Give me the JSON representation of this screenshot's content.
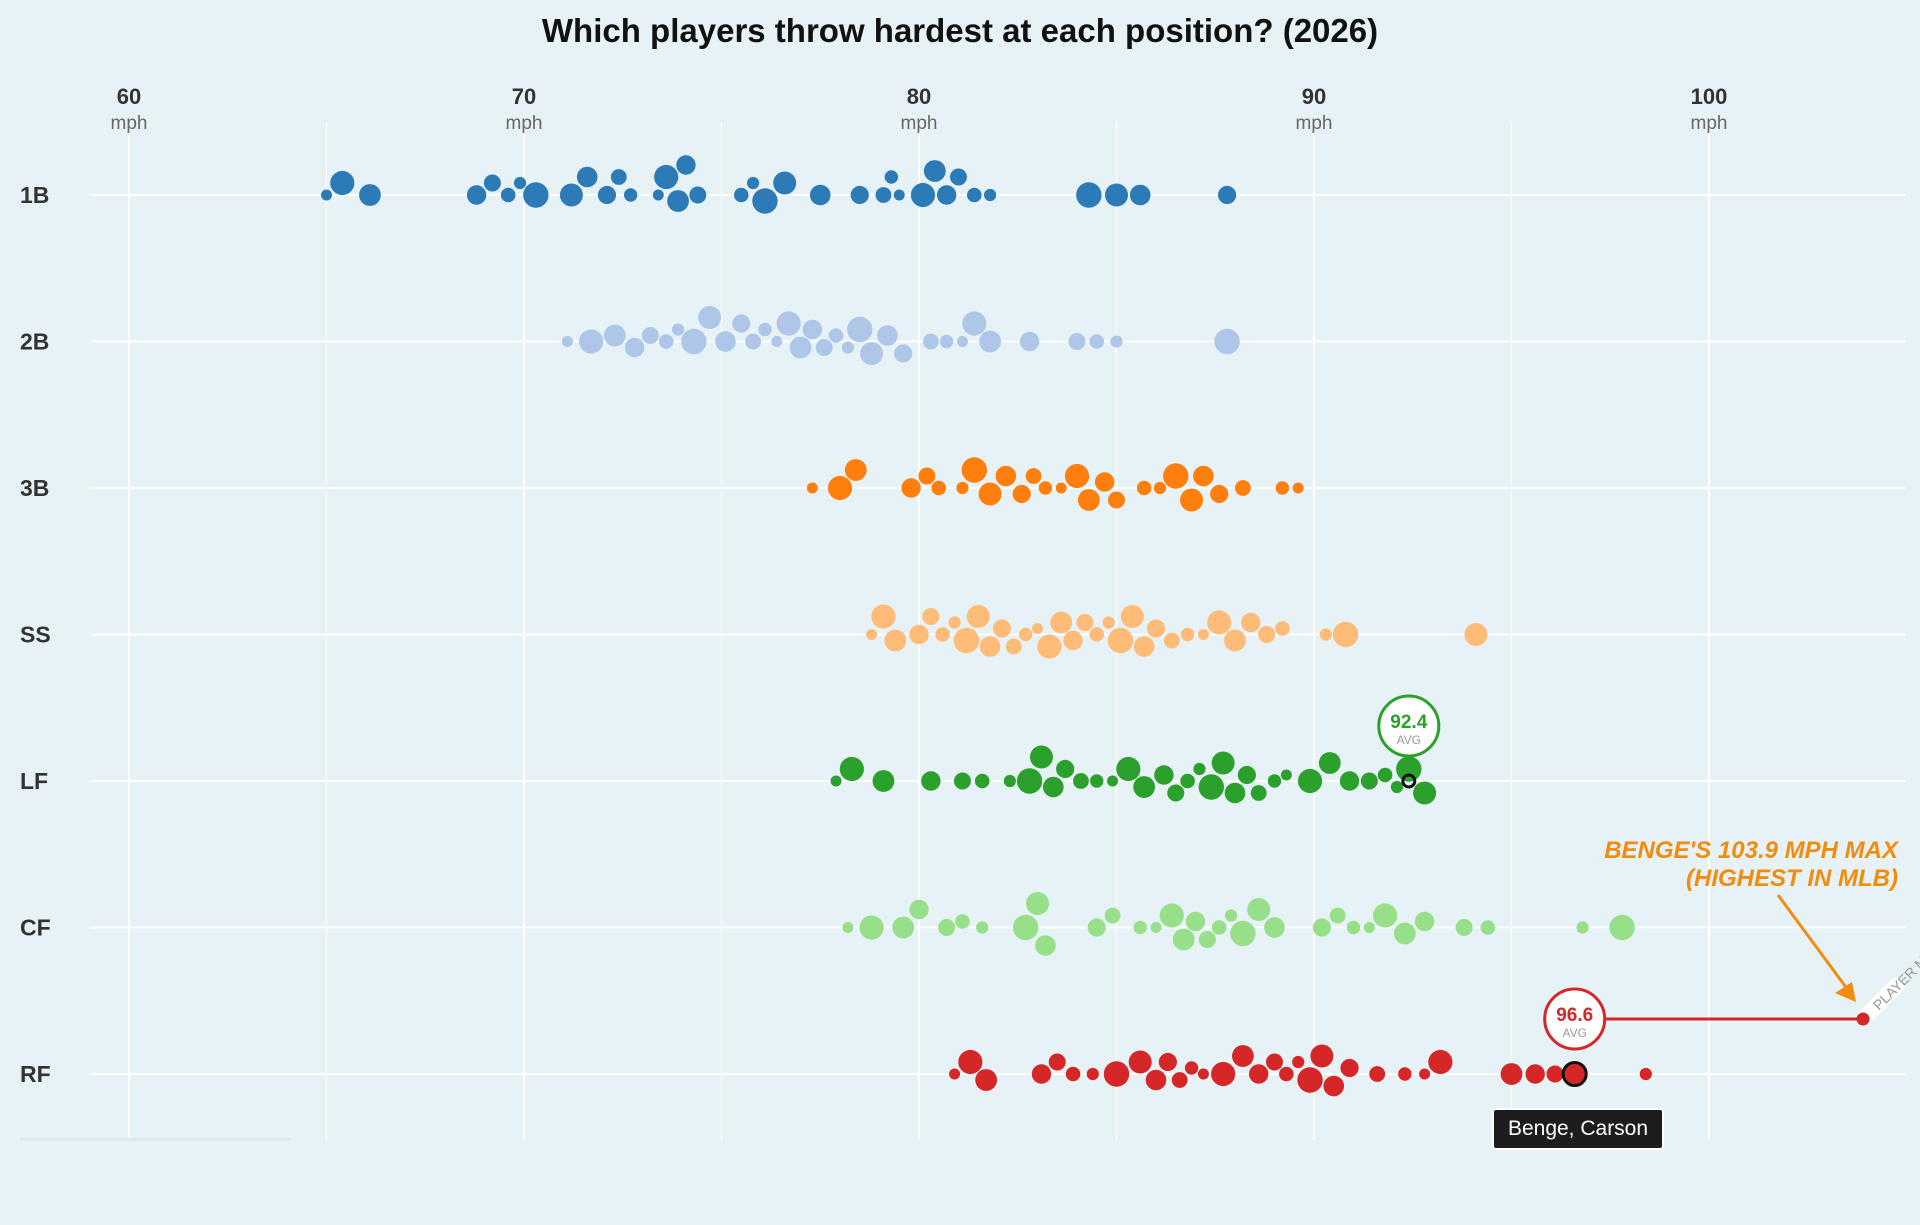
{
  "chart_data": {
    "type": "scatter",
    "title": "Which players throw hardest at each position? (2026)",
    "xlim": [
      60,
      105
    ],
    "x_ticks": [
      {
        "value": 60,
        "label": "60",
        "unit": "mph"
      },
      {
        "value": 70,
        "label": "70",
        "unit": "mph"
      },
      {
        "value": 80,
        "label": "80",
        "unit": "mph"
      },
      {
        "value": 90,
        "label": "90",
        "unit": "mph"
      },
      {
        "value": 100,
        "label": "100",
        "unit": "mph"
      }
    ],
    "minor_gridlines": [
      65,
      75,
      85,
      95
    ],
    "grid": true,
    "categories": [
      "1B",
      "2B",
      "3B",
      "SS",
      "LF",
      "CF",
      "RF"
    ],
    "series": [
      {
        "name": "1B",
        "color": "#2c7bb6",
        "values": [
          65,
          65.4,
          66.1,
          68.8,
          69.2,
          69.6,
          69.9,
          70.3,
          71.2,
          71.6,
          72.1,
          72.4,
          72.7,
          73.4,
          73.6,
          73.9,
          74.1,
          74.4,
          75.5,
          75.8,
          76.1,
          76.6,
          77.5,
          78.5,
          79.1,
          79.3,
          79.5,
          80.1,
          80.4,
          80.7,
          81.0,
          81.4,
          81.8,
          84.3,
          85.0,
          85.6,
          87.8
        ]
      },
      {
        "name": "2B",
        "color": "#aec7e8",
        "values": [
          71.1,
          71.7,
          72.3,
          72.8,
          73.2,
          73.6,
          73.9,
          74.3,
          74.7,
          75.1,
          75.5,
          75.8,
          76.1,
          76.4,
          76.7,
          77.0,
          77.3,
          77.6,
          77.9,
          78.2,
          78.5,
          78.8,
          79.2,
          79.6,
          80.3,
          80.7,
          81.1,
          81.4,
          81.8,
          82.8,
          84.0,
          84.5,
          85.0,
          87.8
        ]
      },
      {
        "name": "3B",
        "color": "#ff7f0e",
        "values": [
          77.3,
          78.0,
          78.4,
          79.8,
          80.2,
          80.5,
          81.1,
          81.4,
          81.8,
          82.2,
          82.6,
          82.9,
          83.2,
          83.6,
          84.0,
          84.3,
          84.7,
          85.0,
          85.7,
          86.1,
          86.5,
          86.9,
          87.2,
          87.6,
          88.2,
          89.2,
          89.6
        ]
      },
      {
        "name": "SS",
        "color": "#ffbb78",
        "values": [
          78.8,
          79.1,
          79.4,
          80.0,
          80.3,
          80.6,
          80.9,
          81.2,
          81.5,
          81.8,
          82.1,
          82.4,
          82.7,
          83.0,
          83.3,
          83.6,
          83.9,
          84.2,
          84.5,
          84.8,
          85.1,
          85.4,
          85.7,
          86.0,
          86.4,
          86.8,
          87.2,
          87.6,
          88.0,
          88.4,
          88.8,
          89.2,
          90.3,
          90.8,
          94.1
        ]
      },
      {
        "name": "LF",
        "color": "#2ca02c",
        "values": [
          77.9,
          78.3,
          79.1,
          80.3,
          81.1,
          81.6,
          82.3,
          82.8,
          83.1,
          83.4,
          83.7,
          84.1,
          84.5,
          84.9,
          85.3,
          85.7,
          86.2,
          86.5,
          86.8,
          87.1,
          87.4,
          87.7,
          88.0,
          88.3,
          88.6,
          89.0,
          89.3,
          89.9,
          90.4,
          90.9,
          91.4,
          91.8,
          92.1,
          92.4,
          92.8
        ]
      },
      {
        "name": "CF",
        "color": "#98df8a",
        "values": [
          78.2,
          78.8,
          79.6,
          80.0,
          80.7,
          81.1,
          81.6,
          82.7,
          83.0,
          83.2,
          84.5,
          84.9,
          85.6,
          86.0,
          86.4,
          86.7,
          87.0,
          87.3,
          87.6,
          87.9,
          88.2,
          88.6,
          89.0,
          90.2,
          90.6,
          91.0,
          91.4,
          91.8,
          92.3,
          92.8,
          93.8,
          94.4,
          96.8,
          97.8
        ]
      },
      {
        "name": "RF",
        "color": "#d62728",
        "values": [
          80.9,
          81.3,
          81.7,
          83.1,
          83.5,
          83.9,
          84.4,
          85.0,
          85.6,
          86.0,
          86.3,
          86.6,
          86.9,
          87.2,
          87.7,
          88.2,
          88.6,
          89.0,
          89.3,
          89.6,
          89.9,
          90.2,
          90.5,
          90.9,
          91.6,
          92.3,
          92.8,
          93.2,
          95.0,
          95.6,
          96.1,
          96.6,
          98.4
        ]
      }
    ],
    "annotations": [
      {
        "category": "LF",
        "x": 92.4,
        "value_label": "92.4",
        "label": "AVG",
        "color": "#2ca02c"
      },
      {
        "category": "RF",
        "x": 96.6,
        "value_label": "96.6",
        "label": "AVG",
        "color": "#d62728",
        "max_x": 103.9,
        "max_tag": "PLAYER MAX"
      }
    ],
    "callout": {
      "lines": [
        "BENGE'S 103.9 MPH MAX",
        "(HIGHEST IN MLB)"
      ],
      "color": "#f28c0f"
    },
    "highlight": {
      "category": "RF",
      "x": 96.6
    },
    "tooltip": "Benge, Carson"
  }
}
